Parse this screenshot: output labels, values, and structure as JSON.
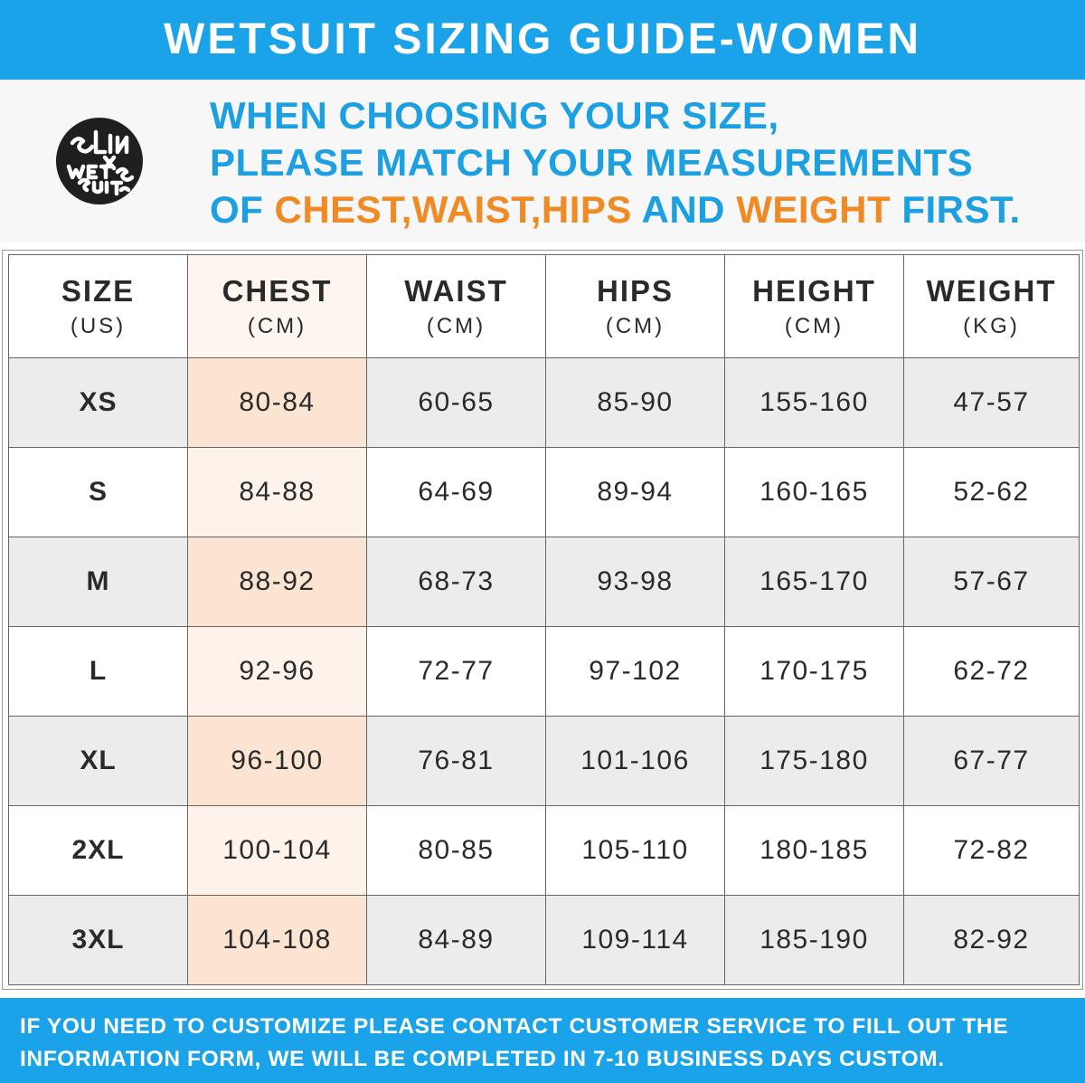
{
  "title": "WETSUIT SIZING GUIDE-WOMEN",
  "logo": {
    "line1": "SLINX",
    "line2": "WETSUITS",
    "color": "#1f1f1f"
  },
  "intro": {
    "line1": "WHEN CHOOSING YOUR SIZE,",
    "line2": "PLEASE MATCH YOUR MEASUREMENTS",
    "line3_prefix": "OF ",
    "highlight1": "CHEST,WAIST,HIPS",
    "line3_mid": " AND ",
    "highlight2": "WEIGHT",
    "line3_suffix": " FIRST."
  },
  "colors": {
    "banner": "#1aa3e8",
    "intro_text": "#1ca0e2",
    "highlight": "#f08a24",
    "chest_column": "#fce4d2",
    "row_alt": "#ececec"
  },
  "table": {
    "headers": [
      {
        "name": "SIZE",
        "unit": "(US)"
      },
      {
        "name": "CHEST",
        "unit": "(CM)"
      },
      {
        "name": "WAIST",
        "unit": "(CM)"
      },
      {
        "name": "HIPS",
        "unit": "(CM)"
      },
      {
        "name": "HEIGHT",
        "unit": "(CM)"
      },
      {
        "name": "WEIGHT",
        "unit": "(KG)"
      }
    ],
    "rows": [
      {
        "size": "XS",
        "chest": "80-84",
        "waist": "60-65",
        "hips": "85-90",
        "height": "155-160",
        "weight": "47-57"
      },
      {
        "size": "S",
        "chest": "84-88",
        "waist": "64-69",
        "hips": "89-94",
        "height": "160-165",
        "weight": "52-62"
      },
      {
        "size": "M",
        "chest": "88-92",
        "waist": "68-73",
        "hips": "93-98",
        "height": "165-170",
        "weight": "57-67"
      },
      {
        "size": "L",
        "chest": "92-96",
        "waist": "72-77",
        "hips": "97-102",
        "height": "170-175",
        "weight": "62-72"
      },
      {
        "size": "XL",
        "chest": "96-100",
        "waist": "76-81",
        "hips": "101-106",
        "height": "175-180",
        "weight": "67-77"
      },
      {
        "size": "2XL",
        "chest": "100-104",
        "waist": "80-85",
        "hips": "105-110",
        "height": "180-185",
        "weight": "72-82"
      },
      {
        "size": "3XL",
        "chest": "104-108",
        "waist": "84-89",
        "hips": "109-114",
        "height": "185-190",
        "weight": "82-92"
      }
    ]
  },
  "footer": {
    "line1": "IF YOU NEED TO CUSTOMIZE PLEASE CONTACT CUSTOMER SERVICE TO FILL OUT THE",
    "line2": "INFORMATION FORM, WE WILL BE COMPLETED IN 7-10 BUSINESS DAYS CUSTOM."
  }
}
